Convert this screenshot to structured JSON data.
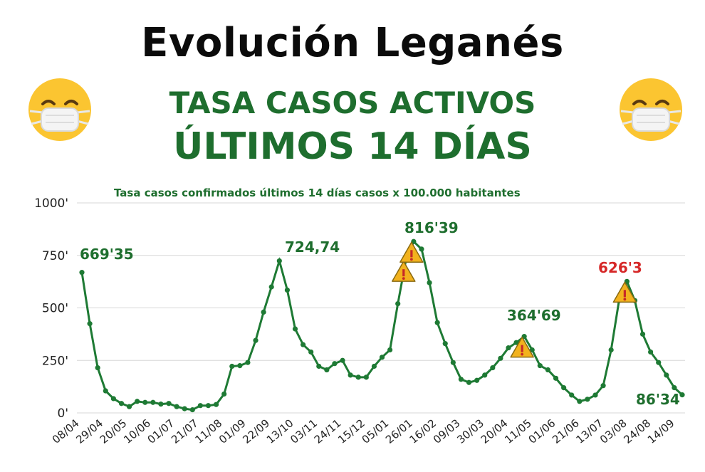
{
  "header": {
    "title": "Evolución Leganés",
    "subtitle1": "TASA CASOS ACTIVOS",
    "subtitle2": "ÚLTIMOS 14 DÍAS"
  },
  "icons": {
    "left": "face-with-mask-icon",
    "right": "face-with-mask-icon",
    "warning": "warning-triangle-icon"
  },
  "colors": {
    "line": "#1e7a34",
    "text_green": "#1e6e2e",
    "text_red": "#d62828",
    "warning_fill": "#f2b21e",
    "warning_mark": "#c62828"
  },
  "chart_data": {
    "type": "line",
    "subtitle": "Tasa casos confirmados últimos 14 días  casos x 100.000 habitantes",
    "ylim": [
      0,
      1000
    ],
    "yticks": [
      0,
      250,
      500,
      750,
      1000
    ],
    "ytick_labels": [
      "0'",
      "250'",
      "500'",
      "750'",
      "1000'"
    ],
    "xtick_labels": [
      "08/04",
      "29/04",
      "20/05",
      "10/06",
      "01/07",
      "21/07",
      "11/08",
      "01/09",
      "22/09",
      "13/10",
      "03/11",
      "24/11",
      "15/12",
      "05/01",
      "26/01",
      "16/02",
      "09/03",
      "30/03",
      "20/04",
      "11/05",
      "01/06",
      "21/06",
      "13/07",
      "03/08",
      "24/08",
      "14/09"
    ],
    "grid": true,
    "values": [
      669,
      425,
      215,
      105,
      68,
      45,
      30,
      55,
      50,
      50,
      42,
      45,
      30,
      20,
      15,
      35,
      35,
      40,
      90,
      222,
      225,
      240,
      345,
      480,
      600,
      724,
      585,
      400,
      325,
      290,
      222,
      205,
      235,
      250,
      180,
      170,
      170,
      222,
      265,
      300,
      520,
      725,
      816,
      780,
      620,
      430,
      330,
      240,
      160,
      145,
      155,
      180,
      215,
      260,
      310,
      335,
      364,
      300,
      225,
      205,
      165,
      120,
      85,
      55,
      65,
      85,
      130,
      300,
      535,
      626,
      535,
      375,
      290,
      240,
      180,
      120,
      86
    ],
    "annotations": [
      {
        "label": "669'35",
        "value": 669.35,
        "color": "green"
      },
      {
        "label": "724,74",
        "value": 724.74,
        "color": "green"
      },
      {
        "label": "816'39",
        "value": 816.39,
        "color": "green"
      },
      {
        "label": "364'69",
        "value": 364.69,
        "color": "green"
      },
      {
        "label": "626'3",
        "value": 626.3,
        "color": "red"
      },
      {
        "label": "86'34",
        "value": 86.34,
        "color": "green"
      }
    ]
  }
}
